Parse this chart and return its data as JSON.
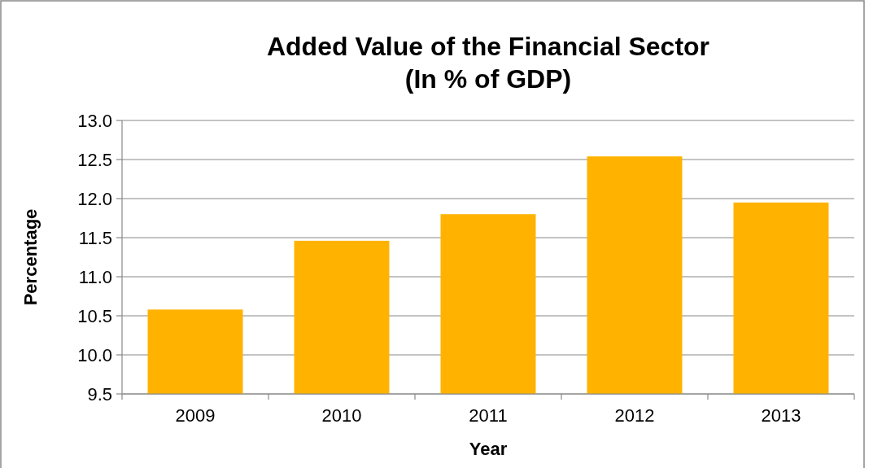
{
  "chart_data": {
    "type": "bar",
    "title": "Added Value of the Financial Sector\n(In % of GDP)",
    "xlabel": "Year",
    "ylabel": "Percentage",
    "categories": [
      "2009",
      "2010",
      "2011",
      "2012",
      "2013"
    ],
    "values": [
      10.58,
      11.46,
      11.8,
      12.54,
      11.95
    ],
    "color": "#ffb300",
    "ylim": [
      9.5,
      13
    ],
    "yticks": [
      {
        "value": 9.5,
        "label": "9.5"
      },
      {
        "value": 10,
        "label": "10.0"
      },
      {
        "value": 10.5,
        "label": "10.5"
      },
      {
        "value": 11,
        "label": "11.0"
      },
      {
        "value": 11.5,
        "label": "11.5"
      },
      {
        "value": 12,
        "label": "12.0"
      },
      {
        "value": 12.5,
        "label": "12.5"
      },
      {
        "value": 13,
        "label": "13.0"
      }
    ],
    "grid": "y"
  }
}
